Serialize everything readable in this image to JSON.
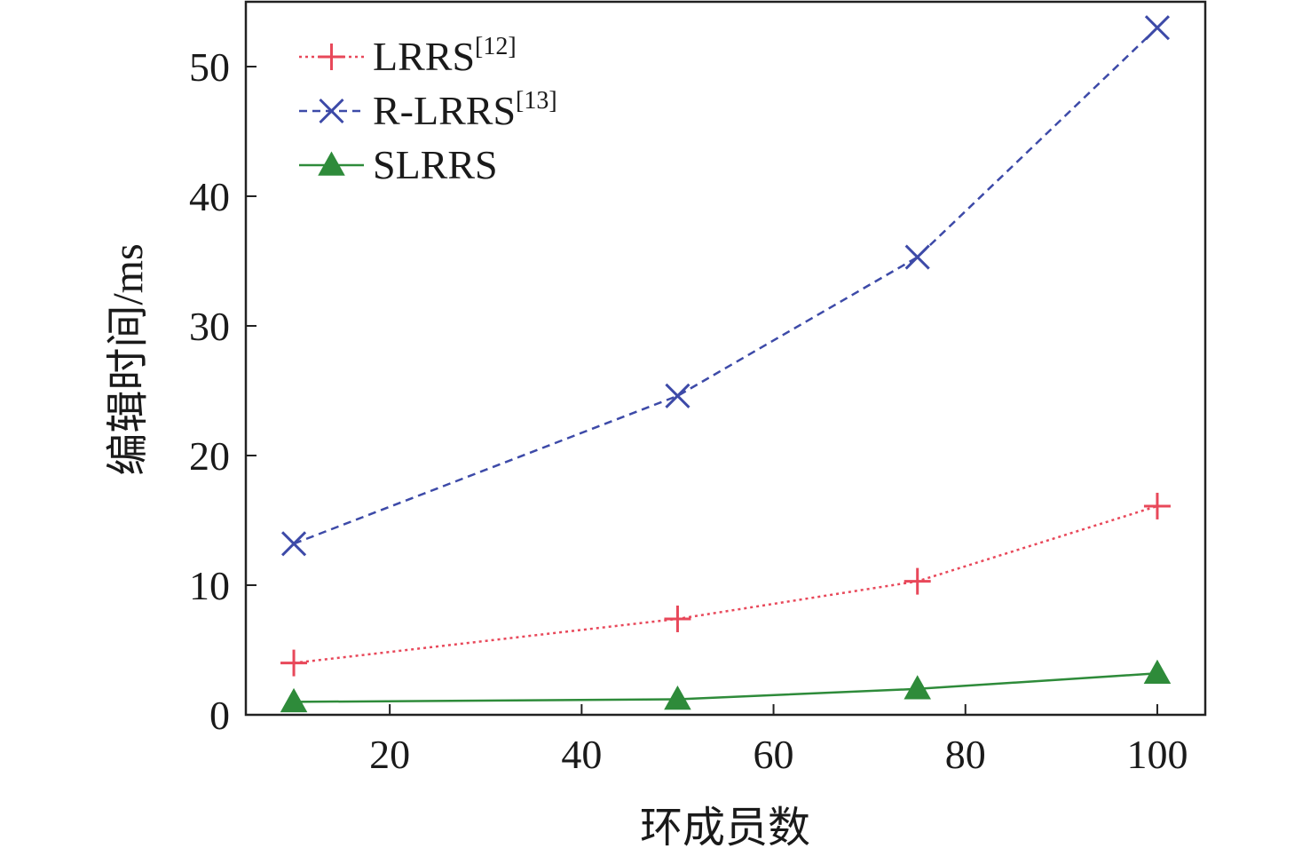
{
  "chart_data": {
    "type": "line",
    "title": "",
    "xlabel": "环成员数",
    "ylabel": "编辑时间/ms",
    "xlim": [
      5,
      105
    ],
    "ylim": [
      0,
      55
    ],
    "x_ticks": [
      20,
      40,
      60,
      80,
      100
    ],
    "y_ticks": [
      0,
      10,
      20,
      30,
      40,
      50
    ],
    "grid": false,
    "legend_position": "top-left",
    "x": [
      10,
      50,
      75,
      100
    ],
    "series": [
      {
        "name": "LRRS",
        "ref": "[12]",
        "values": [
          4.0,
          7.4,
          10.3,
          16.1
        ],
        "color": "#e8485a",
        "line_style": "dotted",
        "marker": "plus"
      },
      {
        "name": "R-LRRS",
        "ref": "[13]",
        "values": [
          13.2,
          24.6,
          35.3,
          53.0
        ],
        "color": "#3d4aa8",
        "line_style": "dashed",
        "marker": "x"
      },
      {
        "name": "SLRRS",
        "ref": "",
        "values": [
          1.0,
          1.2,
          2.0,
          3.2
        ],
        "color": "#2e8b3a",
        "line_style": "solid",
        "marker": "triangle"
      }
    ]
  }
}
